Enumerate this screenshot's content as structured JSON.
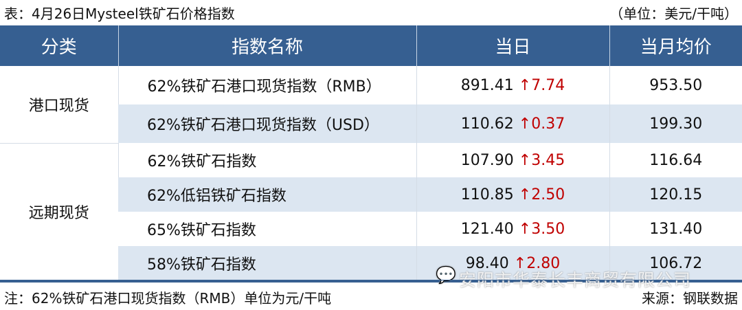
{
  "title": "表：4月26日Mysteel铁矿石价格指数",
  "unit": "（单位：美元/干吨）",
  "headers": [
    "分类",
    "指数名称",
    "当日",
    "当月均价"
  ],
  "groups": [
    {
      "category": "港口现货",
      "rows": [
        {
          "name": "62%铁矿石港口现货指数（RMB）",
          "value": "891.41",
          "change": "↑7.74",
          "avg": "953.50"
        },
        {
          "name": "62%铁矿石港口现货指数（USD）",
          "value": "110.62",
          "change": "↑0.37",
          "avg": "199.30"
        }
      ]
    },
    {
      "category": "远期现货",
      "rows": [
        {
          "name": "62%铁矿石指数",
          "value": "107.90",
          "change": "↑3.45",
          "avg": "116.64"
        },
        {
          "name": "62%低铝铁矿石指数",
          "value": "110.85",
          "change": "↑2.50",
          "avg": "120.15"
        },
        {
          "name": "65%铁矿石指数",
          "value": "121.40",
          "change": "↑3.50",
          "avg": "131.40"
        },
        {
          "name": "58%铁矿石指数",
          "value": "98.40",
          "change": "↑2.80",
          "avg": "106.72"
        }
      ]
    }
  ],
  "note": "注：62%铁矿石港口现货指数（RMB）单位为元/干吨",
  "source": "来源：钢联数据",
  "watermark": "安阳市华泰长丰商贸有限公司",
  "colors": {
    "header": "#365f91",
    "shade": "#dce6f1",
    "up": "#c00000"
  }
}
